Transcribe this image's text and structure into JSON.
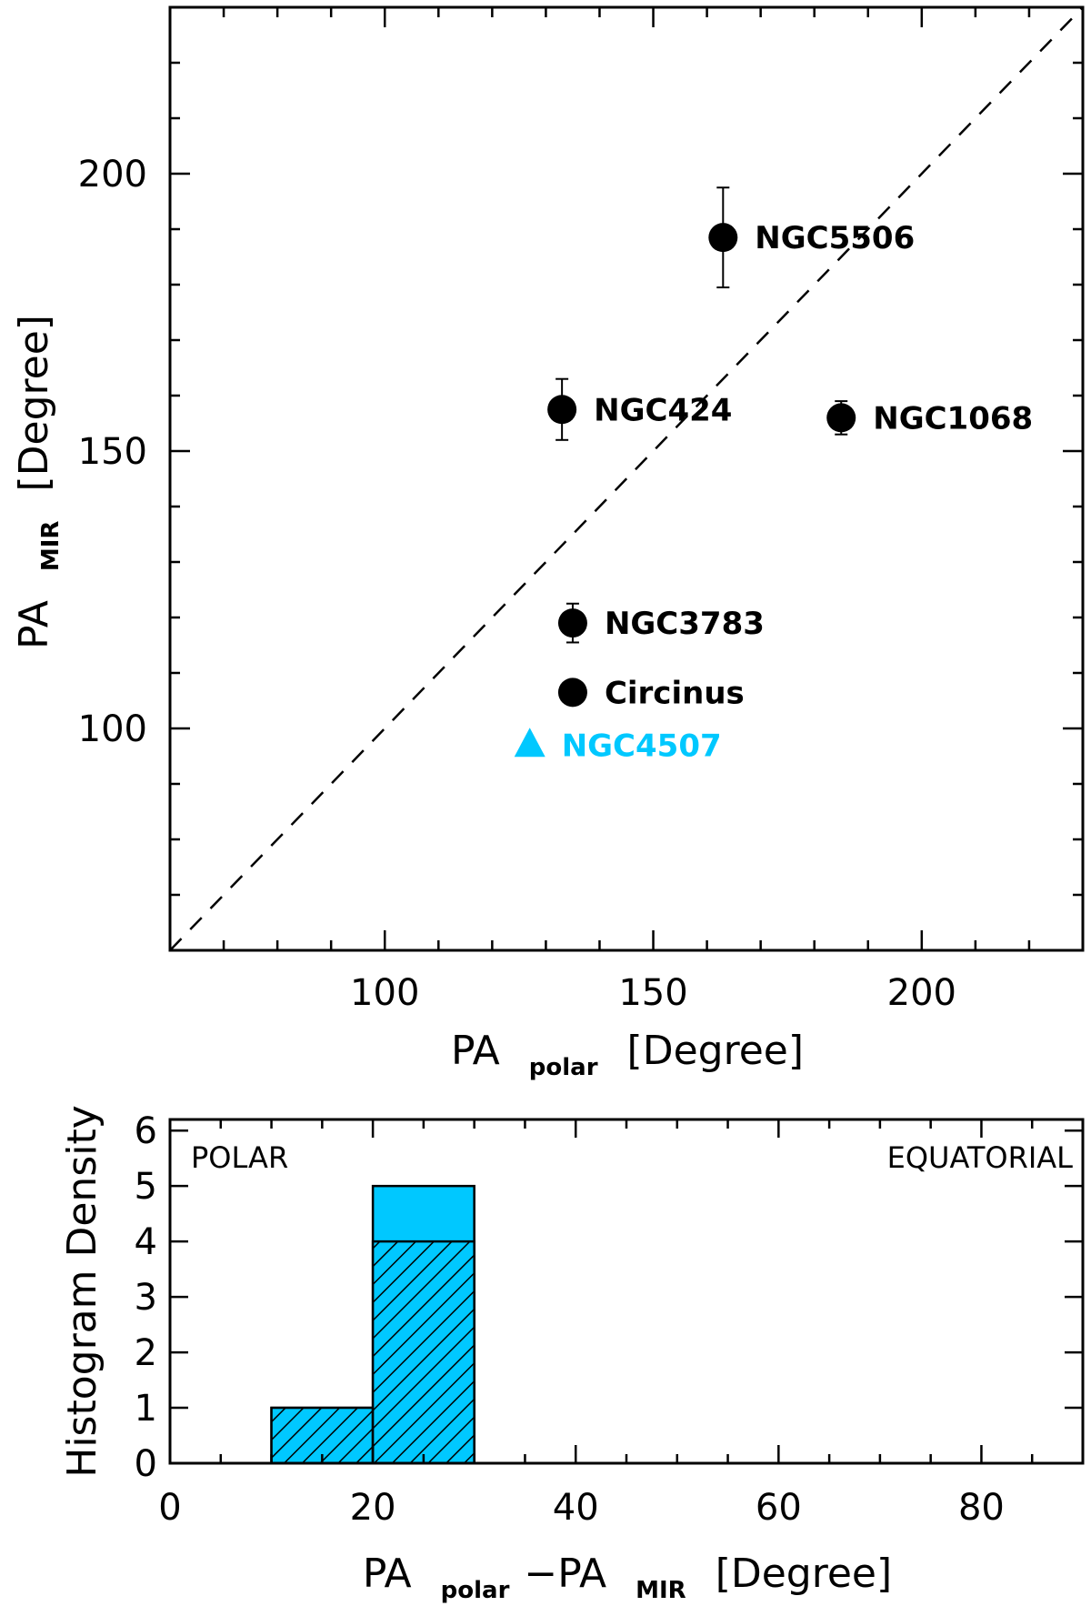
{
  "chart_data": [
    {
      "type": "scatter",
      "panel": "top",
      "x_range": [
        60,
        230
      ],
      "y_range": [
        60,
        230
      ],
      "x_ticks": [
        100,
        150,
        200
      ],
      "y_ticks": [
        100,
        150,
        200
      ],
      "x_tick_labels": [
        "100",
        "150",
        "200"
      ],
      "y_tick_labels": [
        "100",
        "150",
        "200"
      ],
      "xlabel_main": "PA",
      "xlabel_sub": "polar",
      "xlabel_unit": "[Degree]",
      "ylabel_main": "PA",
      "ylabel_sub": "MIR",
      "ylabel_unit": "[Degree]",
      "reference_line": "y = x",
      "points": [
        {
          "name": "NGC5506",
          "x": 163,
          "y": 188.5,
          "err": 9,
          "marker": "circle",
          "color": "#000000"
        },
        {
          "name": "NGC424",
          "x": 133,
          "y": 157.5,
          "err": 5.5,
          "marker": "circle",
          "color": "#000000"
        },
        {
          "name": "NGC1068",
          "x": 185,
          "y": 156,
          "err": 3,
          "marker": "circle",
          "color": "#000000"
        },
        {
          "name": "NGC3783",
          "x": 135,
          "y": 119,
          "err": 3.5,
          "marker": "circle",
          "color": "#000000"
        },
        {
          "name": "Circinus",
          "x": 135,
          "y": 106.5,
          "err": 0,
          "marker": "circle",
          "color": "#000000"
        },
        {
          "name": "NGC4507",
          "x": 127,
          "y": 97,
          "err": 0,
          "marker": "triangle",
          "color": "#00c8ff"
        }
      ]
    },
    {
      "type": "bar",
      "panel": "bottom",
      "x_range": [
        0,
        90
      ],
      "y_range": [
        0,
        6.2
      ],
      "x_ticks": [
        0,
        20,
        40,
        60,
        80
      ],
      "y_ticks": [
        0,
        1,
        2,
        3,
        4,
        5,
        6
      ],
      "x_tick_labels": [
        "0",
        "20",
        "40",
        "60",
        "80"
      ],
      "y_tick_labels": [
        "0",
        "1",
        "2",
        "3",
        "4",
        "5",
        "6"
      ],
      "ylabel": "Histogram Density",
      "xlabel_parts": [
        "PA",
        "polar",
        "−PA",
        "MIR",
        "[Degree]"
      ],
      "left_annotation": "POLAR",
      "right_annotation": "EQUATORIAL",
      "bins": [
        {
          "from": 10,
          "to": 20,
          "total": 1,
          "hatched": 1
        },
        {
          "from": 20,
          "to": 30,
          "total": 5,
          "hatched": 4
        }
      ],
      "fill_color": "#00c8ff"
    }
  ]
}
